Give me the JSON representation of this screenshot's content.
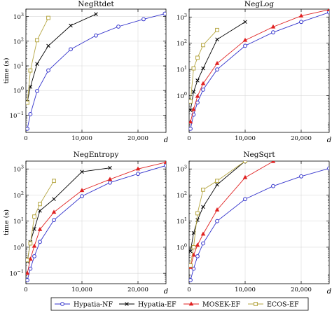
{
  "legend": {
    "position": "bottom-center",
    "entries": [
      {
        "name": "Hypatia-NF",
        "color": "#3333cc",
        "marker": "circle"
      },
      {
        "name": "Hypatia-EF",
        "color": "#000000",
        "marker": "cross"
      },
      {
        "name": "MOSEK-EF",
        "color": "#e02020",
        "marker": "triangle"
      },
      {
        "name": "ECOS-EF",
        "color": "#b5a642",
        "marker": "square"
      }
    ]
  },
  "chart_data": [
    {
      "type": "line",
      "title": "NegRtdet",
      "xlabel": "d",
      "ylabel": "time (s)",
      "yscale": "log",
      "xlim": [
        0,
        25000
      ],
      "ylim": [
        0.02,
        2000
      ],
      "xticks": [
        {
          "v": 0,
          "label": "0"
        },
        {
          "v": 10000,
          "label": "10,000"
        },
        {
          "v": 20000,
          "label": "20,000"
        }
      ],
      "yticks": [
        {
          "v": 0.1,
          "label": "10",
          "exp": "−1"
        },
        {
          "v": 1,
          "label": "10",
          "exp": "0"
        },
        {
          "v": 10,
          "label": "10",
          "exp": "1"
        },
        {
          "v": 100,
          "label": "10",
          "exp": "2"
        },
        {
          "v": 1000,
          "label": "10",
          "exp": "3"
        }
      ],
      "grid": true,
      "series": [
        {
          "name": "Hypatia-NF",
          "x": [
            250,
            800,
            2000,
            4000,
            8000,
            12500,
            16500,
            21000,
            24800
          ],
          "y": [
            0.028,
            0.11,
            0.95,
            6.5,
            47,
            170,
            390,
            780,
            1300
          ]
        },
        {
          "name": "Hypatia-EF",
          "x": [
            250,
            800,
            2000,
            4000,
            8000,
            12500
          ],
          "y": [
            0.35,
            1.4,
            12,
            65,
            430,
            1250
          ]
        },
        {
          "name": "ECOS-EF",
          "x": [
            250,
            800,
            2000,
            4000
          ],
          "y": [
            0.32,
            6.5,
            110,
            880
          ]
        }
      ]
    },
    {
      "type": "line",
      "title": "NegLog",
      "xlabel": "d",
      "ylabel": "",
      "yscale": "log",
      "xlim": [
        0,
        25000
      ],
      "ylim": [
        0.04,
        2000
      ],
      "xticks": [
        {
          "v": 0,
          "label": "0"
        },
        {
          "v": 10000,
          "label": "10,000"
        },
        {
          "v": 20000,
          "label": "20,000"
        }
      ],
      "yticks": [
        {
          "v": 1,
          "label": "10",
          "exp": "0"
        },
        {
          "v": 10,
          "label": "10",
          "exp": "1"
        },
        {
          "v": 100,
          "label": "10",
          "exp": "2"
        },
        {
          "v": 1000,
          "label": "10",
          "exp": "3"
        }
      ],
      "grid": true,
      "series": [
        {
          "name": "Hypatia-NF",
          "x": [
            250,
            800,
            1500,
            2500,
            5000,
            10000,
            15000,
            20000,
            25000
          ],
          "y": [
            0.055,
            0.19,
            0.55,
            1.7,
            10,
            80,
            260,
            650,
            1500
          ]
        },
        {
          "name": "Hypatia-EF",
          "x": [
            250,
            800,
            1500,
            2500,
            5000,
            10000
          ],
          "y": [
            0.28,
            1.4,
            3.8,
            11,
            140,
            650
          ]
        },
        {
          "name": "MOSEK-EF",
          "x": [
            250,
            800,
            1500,
            2500,
            5000,
            10000,
            15000,
            20000,
            25000
          ],
          "y": [
            0.1,
            0.3,
            0.95,
            2.9,
            17,
            130,
            420,
            1100,
            1900
          ]
        },
        {
          "name": "ECOS-EF",
          "x": [
            250,
            800,
            1500,
            2500,
            5000
          ],
          "y": [
            0.6,
            11,
            28,
            85,
            320
          ]
        }
      ]
    },
    {
      "type": "line",
      "title": "NegEntropy",
      "xlabel": "d",
      "ylabel": "time (s)",
      "yscale": "log",
      "xlim": [
        0,
        25000
      ],
      "ylim": [
        0.04,
        2000
      ],
      "xticks": [
        {
          "v": 0,
          "label": "0"
        },
        {
          "v": 10000,
          "label": "10,000"
        },
        {
          "v": 20000,
          "label": "20,000"
        }
      ],
      "yticks": [
        {
          "v": 0.1,
          "label": "10",
          "exp": "−1"
        },
        {
          "v": 1,
          "label": "10",
          "exp": "0"
        },
        {
          "v": 10,
          "label": "10",
          "exp": "1"
        },
        {
          "v": 100,
          "label": "10",
          "exp": "2"
        },
        {
          "v": 1000,
          "label": "10",
          "exp": "3"
        }
      ],
      "grid": true,
      "series": [
        {
          "name": "Hypatia-NF",
          "x": [
            250,
            800,
            1500,
            2500,
            5000,
            10000,
            15000,
            20000,
            25000
          ],
          "y": [
            0.055,
            0.15,
            0.45,
            1.6,
            11,
            90,
            300,
            650,
            1350
          ]
        },
        {
          "name": "Hypatia-EF",
          "x": [
            250,
            800,
            1500,
            2500,
            5000,
            10000,
            15000
          ],
          "y": [
            0.28,
            1.6,
            5,
            25,
            70,
            780,
            1100
          ]
        },
        {
          "name": "MOSEK-EF",
          "x": [
            250,
            800,
            1500,
            2500,
            5000,
            10000,
            15000,
            20000,
            25000
          ],
          "y": [
            0.1,
            0.35,
            1.1,
            4.8,
            22,
            150,
            400,
            1000,
            1800
          ]
        },
        {
          "name": "ECOS-EF",
          "x": [
            250,
            800,
            1500,
            2500,
            5000
          ],
          "y": [
            0.32,
            1.4,
            15,
            45,
            350
          ]
        }
      ]
    },
    {
      "type": "line",
      "title": "NegSqrt",
      "xlabel": "d",
      "ylabel": "",
      "yscale": "log",
      "xlim": [
        0,
        25000
      ],
      "ylim": [
        0.04,
        2000
      ],
      "xticks": [
        {
          "v": 0,
          "label": "0"
        },
        {
          "v": 10000,
          "label": "10,000"
        },
        {
          "v": 20000,
          "label": "20,000"
        }
      ],
      "yticks": [
        {
          "v": 1,
          "label": "10",
          "exp": "0"
        },
        {
          "v": 10,
          "label": "10",
          "exp": "1"
        },
        {
          "v": 100,
          "label": "10",
          "exp": "2"
        },
        {
          "v": 1000,
          "label": "10",
          "exp": "3"
        }
      ],
      "grid": true,
      "series": [
        {
          "name": "Hypatia-NF",
          "x": [
            250,
            800,
            1500,
            2500,
            5000,
            10000,
            15000,
            20000,
            25000
          ],
          "y": [
            0.055,
            0.15,
            0.45,
            1.4,
            10,
            70,
            220,
            520,
            1050
          ]
        },
        {
          "name": "Hypatia-EF",
          "x": [
            250,
            800,
            1500,
            2500,
            5000,
            10000
          ],
          "y": [
            0.7,
            3.5,
            11,
            35,
            250,
            2000
          ]
        },
        {
          "name": "MOSEK-EF",
          "x": [
            250,
            800,
            1500,
            2500,
            5000,
            10000,
            15000
          ],
          "y": [
            0.17,
            0.5,
            1.2,
            3.2,
            27,
            470,
            1950
          ]
        },
        {
          "name": "ECOS-EF",
          "x": [
            250,
            800,
            1500,
            2500,
            5000,
            10000
          ],
          "y": [
            0.2,
            1,
            20,
            160,
            350,
            2000
          ]
        }
      ]
    }
  ]
}
